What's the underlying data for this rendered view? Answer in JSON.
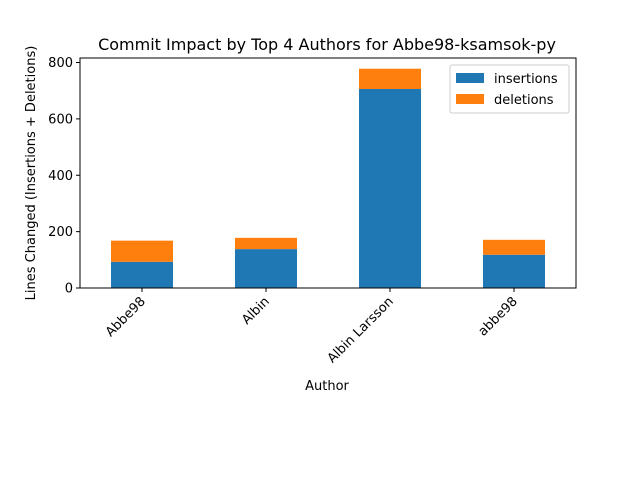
{
  "chart_data": {
    "type": "bar",
    "stacked": true,
    "title": "Commit Impact by Top 4 Authors for Abbe98-ksamsok-py",
    "xlabel": "Author",
    "ylabel": "Lines Changed (Insertions + Deletions)",
    "categories": [
      "Abbe98",
      "Albin",
      "Albin Larsson",
      "abbe98"
    ],
    "series": [
      {
        "name": "insertions",
        "values": [
          93,
          138,
          706,
          118
        ],
        "color": "#1f77b4"
      },
      {
        "name": "deletions",
        "values": [
          75,
          40,
          72,
          53
        ],
        "color": "#ff7f0e"
      }
    ],
    "ylim": [
      0,
      816
    ],
    "yticks": [
      0,
      200,
      400,
      600,
      800
    ],
    "grid": false,
    "legend_position": "top-right"
  }
}
